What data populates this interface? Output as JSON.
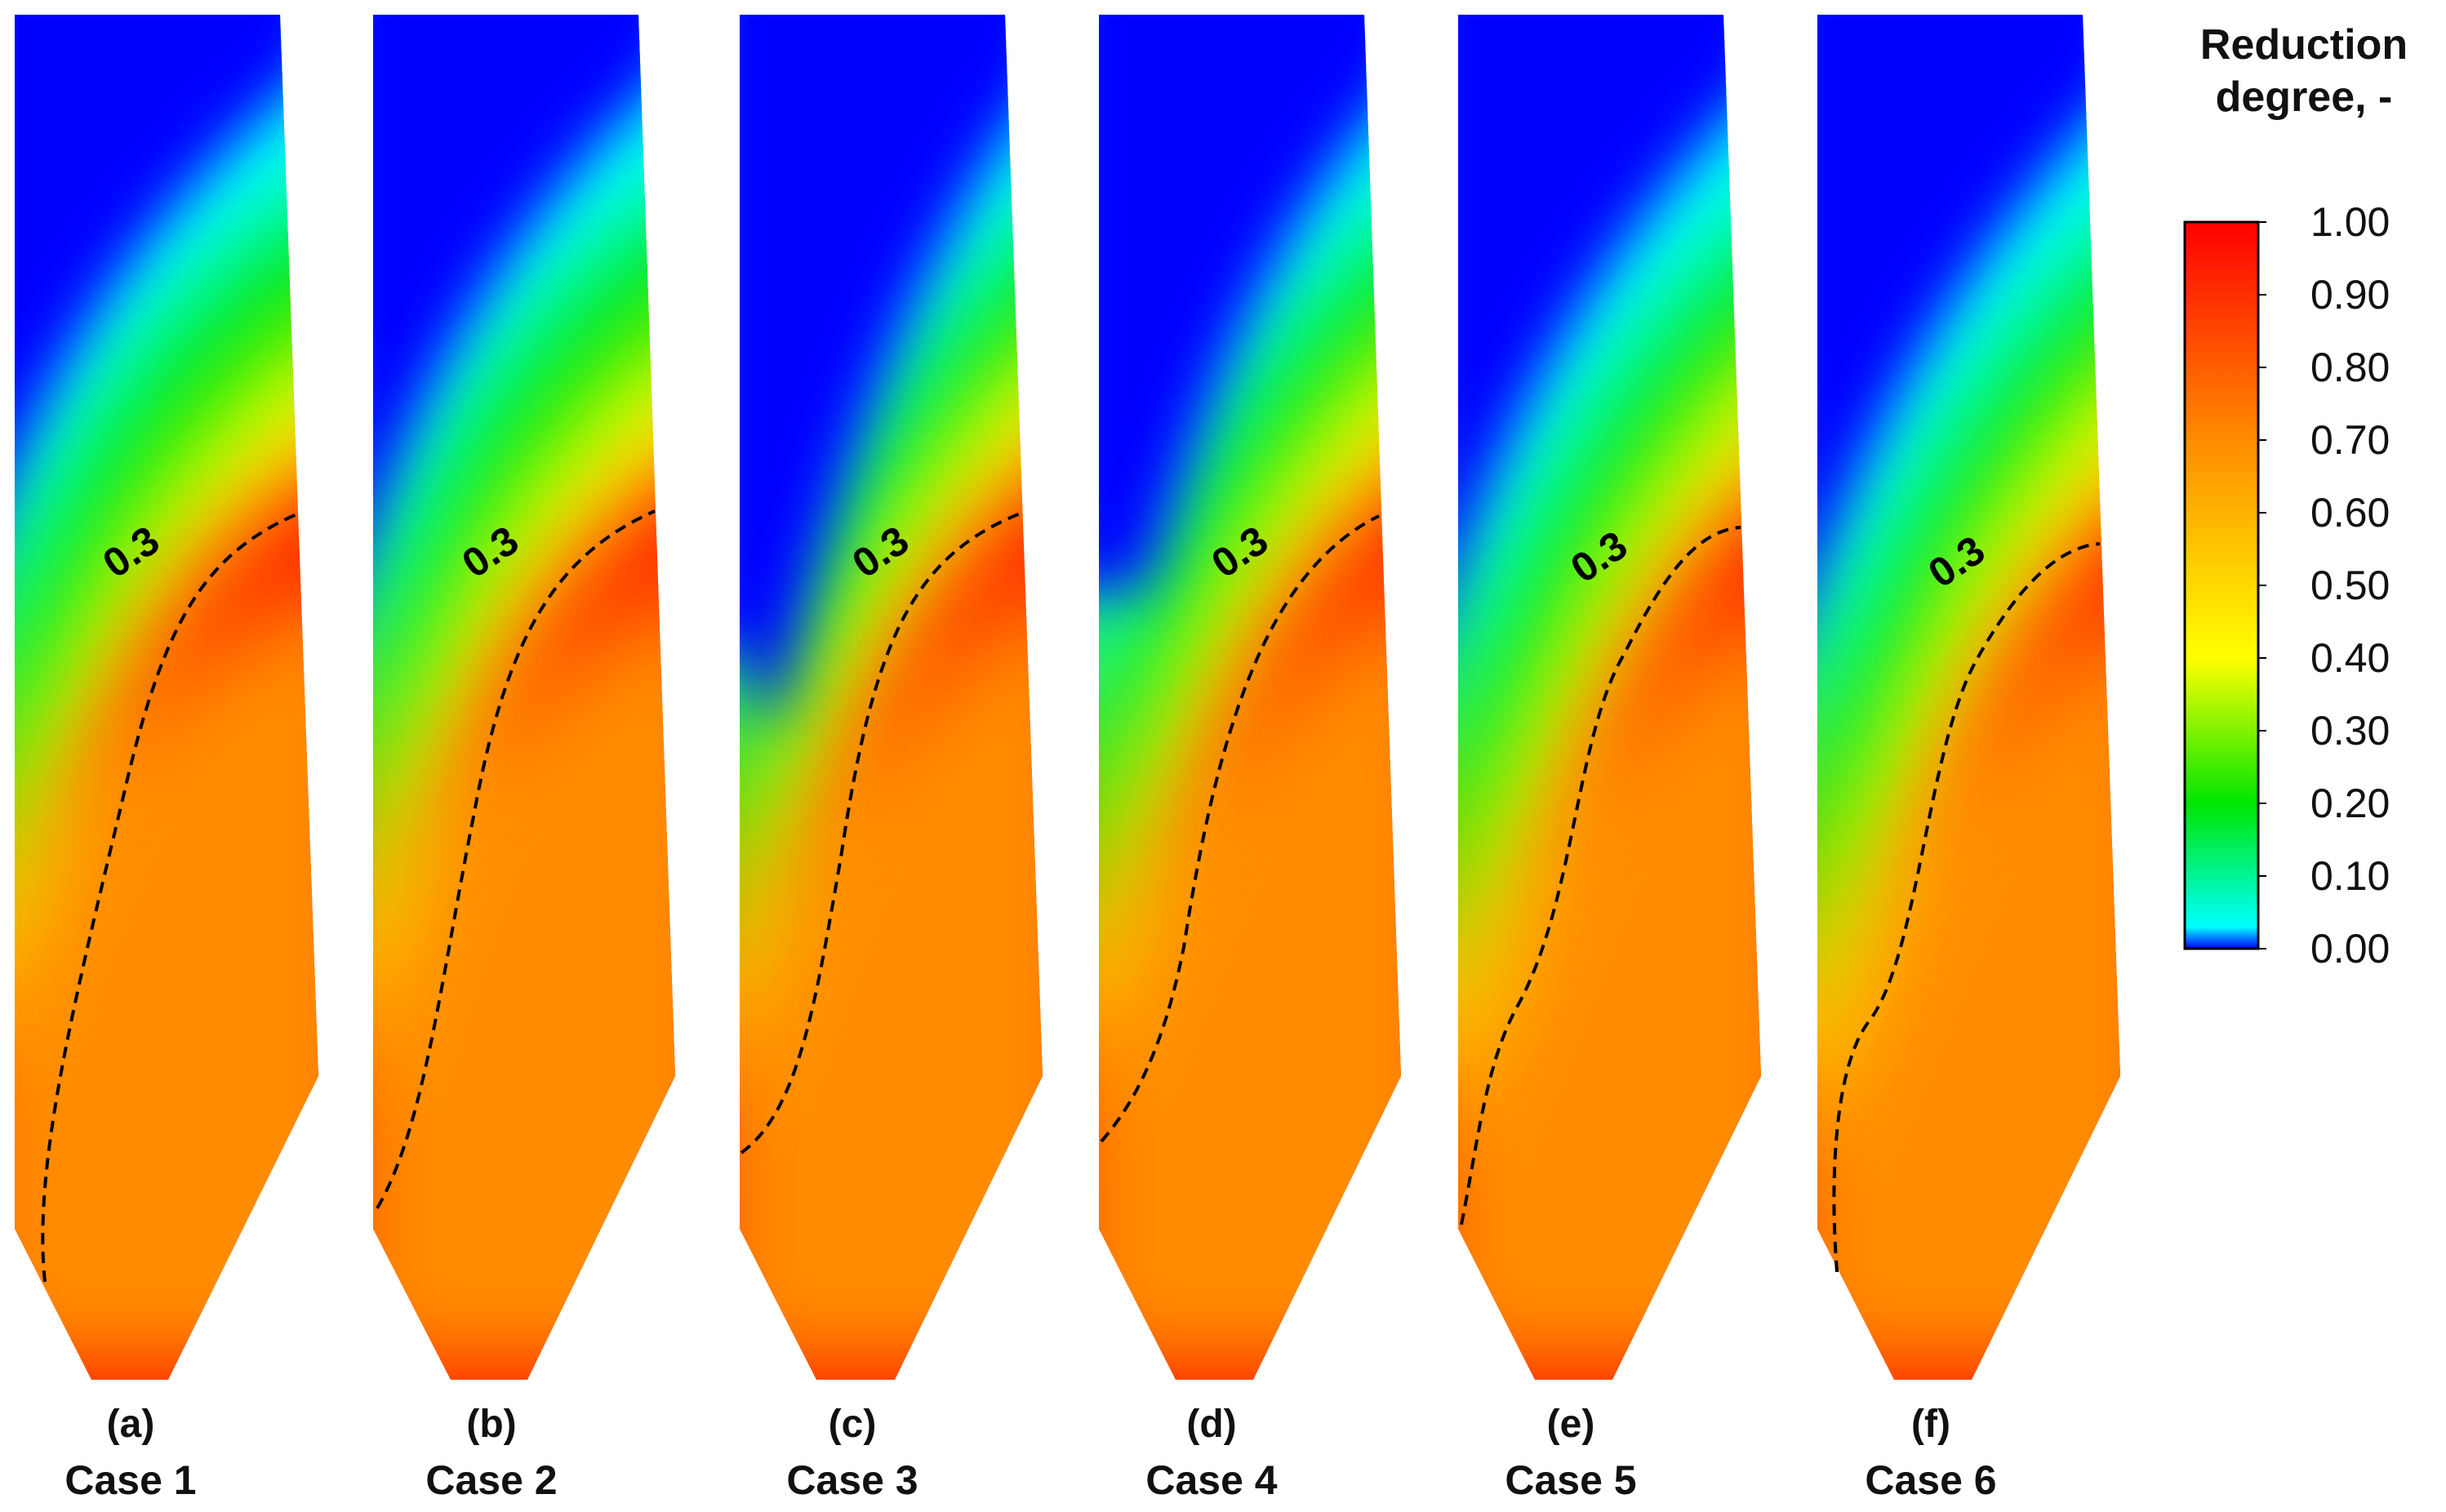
{
  "figure": {
    "variable": "Reduction degree",
    "contour": {
      "level": 0.3,
      "label": "0.3",
      "style": "dashed"
    }
  },
  "panels": [
    {
      "letter": "(a)",
      "case": "Case 1",
      "contour_label": "0.3"
    },
    {
      "letter": "(b)",
      "case": "Case 2",
      "contour_label": "0.3"
    },
    {
      "letter": "(c)",
      "case": "Case 3",
      "contour_label": "0.3"
    },
    {
      "letter": "(d)",
      "case": "Case 4",
      "contour_label": "0.3"
    },
    {
      "letter": "(e)",
      "case": "Case 5",
      "contour_label": "0.3"
    },
    {
      "letter": "(f)",
      "case": "Case 6",
      "contour_label": "0.3"
    }
  ],
  "colorbar": {
    "title_line1": "Reduction",
    "title_line2": "degree, -",
    "min": 0.0,
    "max": 1.0,
    "ticks": [
      "1.00",
      "0.90",
      "0.80",
      "0.70",
      "0.60",
      "0.50",
      "0.40",
      "0.30",
      "0.20",
      "0.10",
      "0.00"
    ],
    "colors": {
      "c000": "#0000ff",
      "c010": "#00ffff",
      "c020": "#00e600",
      "c040": "#ffff00",
      "c070": "#ff8c00",
      "c100": "#ff0000"
    }
  }
}
